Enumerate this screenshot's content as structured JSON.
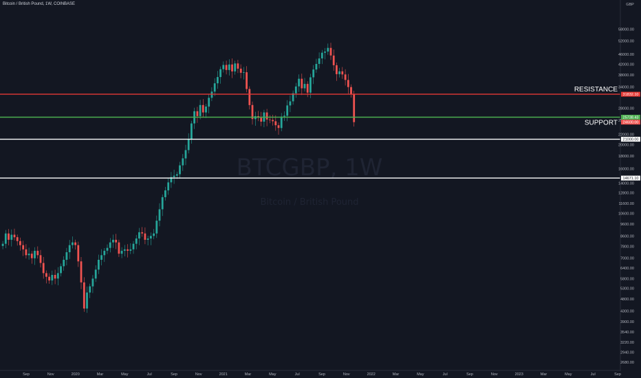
{
  "title": "Bitcoin / British Pound, 1W, COINBASE",
  "currency": "GBP",
  "watermark": {
    "symbol": "BTCGBP, 1W",
    "name": "Bitcoin / British Pound"
  },
  "colors": {
    "up": "#26a69a",
    "down": "#ef5350",
    "resistance": "#e53935",
    "support": "#4caf50",
    "level": "#ffffff",
    "background": "#131722"
  },
  "chart_data": {
    "type": "candlestick",
    "title": "Bitcoin / British Pound, 1W, COINBASE",
    "yscale": "log",
    "ylim": [
      2500,
      75000
    ],
    "x_ticks": [
      "Sep",
      "Nov",
      "2020",
      "Mar",
      "May",
      "Jul",
      "Sep",
      "Nov",
      "2021",
      "Mar",
      "May",
      "Jul",
      "Sep",
      "Nov",
      "2022",
      "Mar",
      "May",
      "Jul",
      "Sep",
      "Nov",
      "2023",
      "Mar",
      "May",
      "Jul",
      "Sep"
    ],
    "y_ticks": [
      "58000.00",
      "52000.00",
      "46000.00",
      "42000.00",
      "38000.00",
      "34000.00",
      "28000.00",
      "25000.00",
      "22000.00",
      "20000.00",
      "18000.00",
      "16000.00",
      "14000.00",
      "12800.00",
      "11600.00",
      "10600.00",
      "9600.00",
      "8600.00",
      "7800.00",
      "7000.00",
      "6400.00",
      "5800.00",
      "5300.00",
      "4800.00",
      "4300.00",
      "3900.00",
      "3540.00",
      "3220.00",
      "2940.00",
      "2680.00"
    ],
    "horizontal_lines": [
      {
        "label": "RESISTANCE",
        "value": 31832.1,
        "tag": "31832.10",
        "color": "#e53935"
      },
      {
        "label": "SUPPORT",
        "value": 25738.43,
        "tag": "25738.43",
        "color": "#4caf50"
      },
      {
        "label": "",
        "value": 21000.0,
        "tag": "21000.00",
        "color": "#ffffff"
      },
      {
        "label": "",
        "value": 14671.1,
        "tag": "14671.10",
        "color": "#ffffff"
      }
    ],
    "last_price": {
      "value": 24600.0,
      "tag": "24600.00",
      "color": "#ef5350"
    },
    "candles_close": [
      8000,
      8800,
      8300,
      8700,
      8500,
      8200,
      7900,
      7600,
      7200,
      7300,
      7000,
      7500,
      7200,
      6700,
      6100,
      5900,
      5700,
      6000,
      5800,
      6100,
      6500,
      6900,
      7400,
      7900,
      8100,
      7900,
      6800,
      5600,
      4400,
      5100,
      5400,
      5800,
      6300,
      6900,
      7200,
      7500,
      7700,
      8100,
      8300,
      8100,
      7300,
      7500,
      7600,
      7500,
      7600,
      8000,
      8400,
      8900,
      8800,
      8300,
      8400,
      8600,
      8800,
      9900,
      11000,
      12300,
      13100,
      14100,
      14800,
      15000,
      15200,
      16500,
      17600,
      19000,
      21000,
      24300,
      27200,
      26000,
      28800,
      26900,
      28400,
      30800,
      32600,
      35200,
      37300,
      40100,
      41700,
      39800,
      41900,
      39300,
      42300,
      40300,
      38800,
      39000,
      33400,
      28800,
      25300,
      26000,
      25600,
      24700,
      26900,
      25200,
      25100,
      24800,
      23900,
      23300,
      25900,
      26100,
      28700,
      29800,
      32100,
      34200,
      36700,
      33600,
      35000,
      32300,
      37200,
      40000,
      42100,
      44300,
      46700,
      47200,
      48800,
      45500,
      41600,
      38300,
      39300,
      38200,
      36300,
      34000,
      31800,
      24600
    ]
  }
}
